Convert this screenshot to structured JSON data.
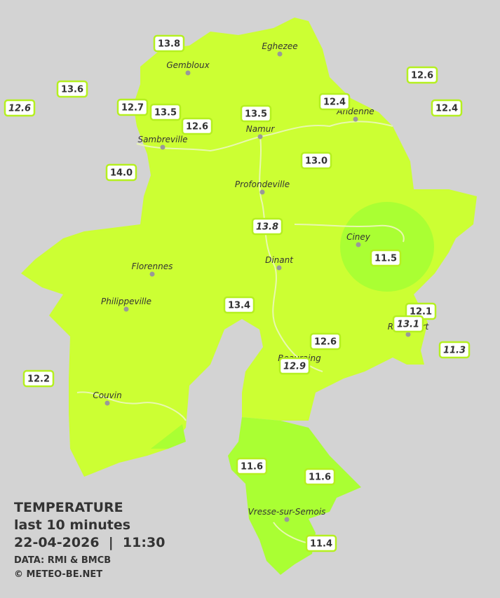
{
  "map": {
    "cities": [
      "Eghezee",
      "Gembloux",
      "Andenne",
      "Namur",
      "Sambreville",
      "Profondeville",
      "Ciney",
      "Dinant",
      "Florennes",
      "Philippeville",
      "Rochefort",
      "Beauraing",
      "Couvin",
      "Vresse-sur-Semois"
    ],
    "stations": [
      {
        "value": "13.8",
        "italic": false
      },
      {
        "value": "13.6",
        "italic": false
      },
      {
        "value": "12.6",
        "italic": true
      },
      {
        "value": "12.7",
        "italic": false
      },
      {
        "value": "13.5",
        "italic": false
      },
      {
        "value": "12.6",
        "italic": false
      },
      {
        "value": "13.5",
        "italic": false
      },
      {
        "value": "12.4",
        "italic": false
      },
      {
        "value": "12.6",
        "italic": false
      },
      {
        "value": "12.4",
        "italic": false
      },
      {
        "value": "14.0",
        "italic": false
      },
      {
        "value": "13.0",
        "italic": false
      },
      {
        "value": "13.8",
        "italic": true
      },
      {
        "value": "11.5",
        "italic": false
      },
      {
        "value": "13.4",
        "italic": false
      },
      {
        "value": "12.1",
        "italic": false
      },
      {
        "value": "13.1",
        "italic": true
      },
      {
        "value": "12.6",
        "italic": false
      },
      {
        "value": "11.3",
        "italic": true
      },
      {
        "value": "12.9",
        "italic": true
      },
      {
        "value": "12.2",
        "italic": false
      },
      {
        "value": "11.6",
        "italic": false
      },
      {
        "value": "11.6",
        "italic": false
      },
      {
        "value": "11.4",
        "italic": false
      }
    ]
  },
  "legend": {
    "title": "TEMPERATURE",
    "period": "last 10 minutes",
    "timestamp": "22-04-2026  |  11:30",
    "source": "DATA: RMI & BMCB",
    "credit": "© METEO-BE.NET"
  }
}
